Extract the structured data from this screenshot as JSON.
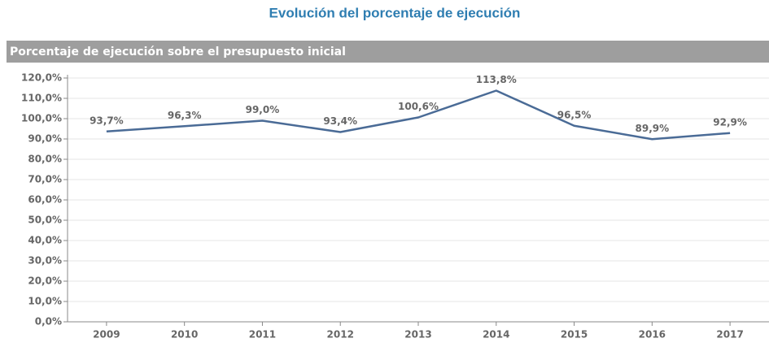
{
  "chart_data": {
    "type": "line",
    "title": "Evolución del porcentaje de ejecución",
    "subtitle": "Porcentaje de ejecución sobre el presupuesto inicial",
    "categories": [
      "2009",
      "2010",
      "2011",
      "2012",
      "2013",
      "2014",
      "2015",
      "2016",
      "2017"
    ],
    "series": [
      {
        "name": "Porcentaje de ejecución",
        "color": "#4a6b96",
        "values": [
          93.7,
          96.3,
          99.0,
          93.4,
          100.6,
          113.8,
          96.5,
          89.9,
          92.9
        ],
        "value_labels": [
          "93,7%",
          "96,3%",
          "99,0%",
          "93,4%",
          "100,6%",
          "113,8%",
          "96,5%",
          "89,9%",
          "92,9%"
        ]
      }
    ],
    "ylim": [
      0,
      120
    ],
    "yticks": [
      {
        "value": 0,
        "label": "0,0%"
      },
      {
        "value": 10,
        "label": "10,0%"
      },
      {
        "value": 20,
        "label": "20,0%"
      },
      {
        "value": 30,
        "label": "30,0%"
      },
      {
        "value": 40,
        "label": "40,0%"
      },
      {
        "value": 50,
        "label": "50,0%"
      },
      {
        "value": 60,
        "label": "60,0%"
      },
      {
        "value": 70,
        "label": "70,0%"
      },
      {
        "value": 80,
        "label": "80,0%"
      },
      {
        "value": 90,
        "label": "90,0%"
      },
      {
        "value": 100,
        "label": "100,0%"
      },
      {
        "value": 110,
        "label": "110,0%"
      },
      {
        "value": 120,
        "label": "120,0%"
      }
    ],
    "grid": true
  }
}
